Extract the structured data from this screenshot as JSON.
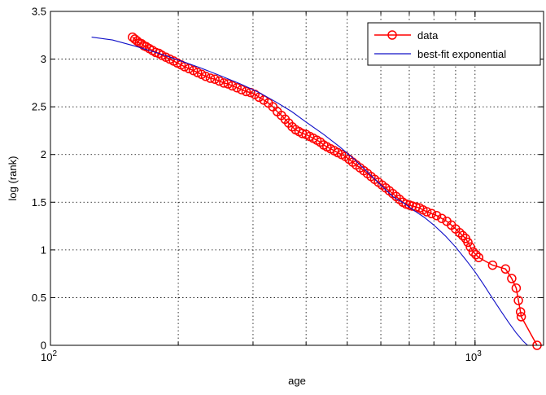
{
  "chart_data": {
    "type": "line",
    "xlabel": "age",
    "ylabel": "log (rank)",
    "x_scale": "log10",
    "xlim": [
      100,
      1450
    ],
    "ylim": [
      0,
      3.5
    ],
    "x_ticks": [
      {
        "value": 100,
        "base": "10",
        "exp": "2"
      },
      {
        "value": 1000,
        "base": "10",
        "exp": "3"
      }
    ],
    "y_ticks": [
      "0",
      "0.5",
      "1",
      "1.5",
      "2",
      "2.5",
      "3",
      "3.5"
    ],
    "y_tick_values": [
      0,
      0.5,
      1,
      1.5,
      2,
      2.5,
      3,
      3.5
    ],
    "grid": true,
    "legend_position": "top-right",
    "series": [
      {
        "name": "data",
        "color": "#ff0000",
        "marker": "circle",
        "x": [
          156,
          158,
          160,
          162,
          164,
          166,
          168,
          171,
          174,
          177,
          180,
          183,
          187,
          191,
          195,
          199,
          203,
          207,
          212,
          217,
          222,
          227,
          232,
          238,
          244,
          250,
          256,
          262,
          268,
          275,
          282,
          289,
          296,
          303,
          310,
          318,
          326,
          334,
          342,
          350,
          357,
          364,
          371,
          378,
          385,
          392,
          400,
          408,
          416,
          424,
          432,
          440,
          448,
          457,
          466,
          475,
          485,
          495,
          505,
          515,
          525,
          536,
          547,
          558,
          569,
          580,
          592,
          604,
          616,
          628,
          640,
          652,
          664,
          676,
          688,
          700,
          712,
          726,
          740,
          754,
          770,
          790,
          812,
          835,
          858,
          880,
          900,
          920,
          935,
          950,
          962,
          975,
          990,
          1005,
          1020,
          1100,
          1180,
          1220,
          1250,
          1265,
          1280,
          1285,
          1400
        ],
        "y": [
          3.23,
          3.21,
          3.19,
          3.17,
          3.16,
          3.14,
          3.13,
          3.11,
          3.09,
          3.07,
          3.06,
          3.04,
          3.02,
          3.0,
          2.98,
          2.96,
          2.94,
          2.92,
          2.9,
          2.88,
          2.86,
          2.84,
          2.82,
          2.8,
          2.79,
          2.77,
          2.75,
          2.74,
          2.72,
          2.7,
          2.68,
          2.66,
          2.65,
          2.63,
          2.6,
          2.57,
          2.54,
          2.5,
          2.45,
          2.41,
          2.37,
          2.33,
          2.29,
          2.26,
          2.24,
          2.22,
          2.21,
          2.19,
          2.17,
          2.15,
          2.13,
          2.1,
          2.08,
          2.06,
          2.04,
          2.02,
          2.0,
          1.98,
          1.95,
          1.92,
          1.89,
          1.86,
          1.83,
          1.8,
          1.77,
          1.74,
          1.71,
          1.68,
          1.65,
          1.62,
          1.59,
          1.56,
          1.53,
          1.5,
          1.48,
          1.47,
          1.46,
          1.45,
          1.44,
          1.42,
          1.4,
          1.38,
          1.36,
          1.33,
          1.3,
          1.26,
          1.22,
          1.18,
          1.15,
          1.12,
          1.08,
          1.03,
          0.98,
          0.95,
          0.92,
          0.84,
          0.8,
          0.7,
          0.6,
          0.47,
          0.35,
          0.3,
          0.0
        ]
      },
      {
        "name": "best-fit exponential",
        "color": "#1010c8",
        "marker": "none",
        "x": [
          125,
          140,
          160,
          180,
          200,
          225,
          250,
          280,
          310,
          340,
          370,
          400,
          440,
          480,
          520,
          560,
          600,
          640,
          680,
          720,
          760,
          800,
          850,
          900,
          950,
          1000,
          1050,
          1100,
          1150,
          1200,
          1250,
          1300,
          1330
        ],
        "y": [
          3.23,
          3.2,
          3.13,
          3.06,
          2.99,
          2.91,
          2.83,
          2.74,
          2.65,
          2.55,
          2.45,
          2.34,
          2.21,
          2.08,
          1.95,
          1.81,
          1.68,
          1.56,
          1.49,
          1.41,
          1.34,
          1.26,
          1.15,
          1.03,
          0.9,
          0.77,
          0.63,
          0.49,
          0.36,
          0.24,
          0.13,
          0.04,
          0.0
        ]
      }
    ]
  }
}
